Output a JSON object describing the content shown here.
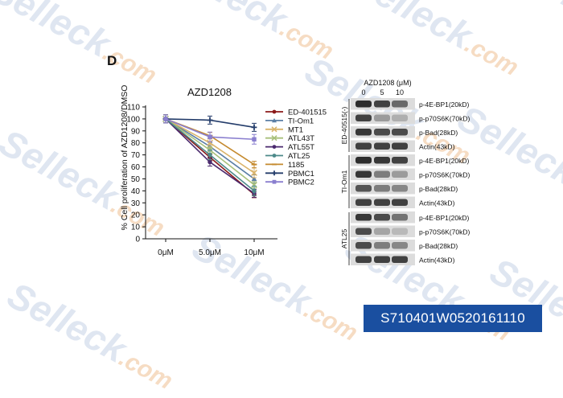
{
  "watermark": {
    "text": "Selleck",
    "suffix": ".com"
  },
  "panel": {
    "letter": "D"
  },
  "catalog_number": "S710401W0520161110",
  "chart_data": {
    "type": "line",
    "title": "AZD1208",
    "xlabel": "",
    "ylabel": "% Cell proliferation of AZD1208/DMSO",
    "categories": [
      "0μM",
      "5.0μM",
      "10μM"
    ],
    "ylim": [
      0,
      110
    ],
    "yticks": [
      0,
      10,
      20,
      30,
      40,
      50,
      60,
      70,
      80,
      90,
      100,
      110
    ],
    "grid": false,
    "legend_position": "right",
    "series": [
      {
        "name": "ED-401515",
        "color": "#8b1a1a",
        "marker": "circle",
        "values": [
          100,
          68,
          37
        ]
      },
      {
        "name": "TI-Om1",
        "color": "#5b7fa6",
        "marker": "triangle",
        "values": [
          100,
          77,
          50
        ]
      },
      {
        "name": "MT1",
        "color": "#d9b36a",
        "marker": "x",
        "values": [
          100,
          80,
          55
        ]
      },
      {
        "name": "ATL43T",
        "color": "#a8c07a",
        "marker": "x",
        "values": [
          100,
          74,
          45
        ]
      },
      {
        "name": "ATL55T",
        "color": "#4b2a6e",
        "marker": "circle",
        "values": [
          100,
          64,
          38
        ]
      },
      {
        "name": "ATL25",
        "color": "#4d8a8a",
        "marker": "circle",
        "values": [
          100,
          70,
          40
        ]
      },
      {
        "name": "1185",
        "color": "#c58a2e",
        "marker": "dash",
        "values": [
          100,
          86,
          62
        ]
      },
      {
        "name": "PBMC1",
        "color": "#243d6b",
        "marker": "plus",
        "values": [
          100,
          99,
          93
        ]
      },
      {
        "name": "PBMC2",
        "color": "#8a7fcf",
        "marker": "square",
        "values": [
          100,
          85,
          83
        ]
      }
    ]
  },
  "blot": {
    "header": "AZD1208 (μM)",
    "doses": [
      "0",
      "5",
      "10"
    ],
    "groups": [
      {
        "label": "ED-40515(-)",
        "rows": [
          "p-4E-BP1(20kD)",
          "p-p70S6K(70kD)",
          "p-Bad(28kD)",
          "Actin(43kD)"
        ],
        "intensity": [
          [
            0.95,
            0.85,
            0.65
          ],
          [
            0.85,
            0.4,
            0.3
          ],
          [
            0.9,
            0.8,
            0.8
          ],
          [
            0.85,
            0.85,
            0.85
          ]
        ]
      },
      {
        "label": "TI-Om1",
        "rows": [
          "p-4E-BP1(20kD)",
          "p-p70S6K(70kD)",
          "p-Bad(28kD)",
          "Actin(43kD)"
        ],
        "intensity": [
          [
            0.95,
            0.9,
            0.85
          ],
          [
            0.9,
            0.55,
            0.4
          ],
          [
            0.75,
            0.55,
            0.5
          ],
          [
            0.85,
            0.85,
            0.85
          ]
        ]
      },
      {
        "label": "ATL25",
        "rows": [
          "p-4E-BP1(20kD)",
          "p-p70S6K(70kD)",
          "p-Bad(28kD)",
          "Actin(43kD)"
        ],
        "intensity": [
          [
            0.9,
            0.8,
            0.6
          ],
          [
            0.8,
            0.35,
            0.25
          ],
          [
            0.8,
            0.55,
            0.5
          ],
          [
            0.85,
            0.85,
            0.85
          ]
        ]
      }
    ]
  }
}
